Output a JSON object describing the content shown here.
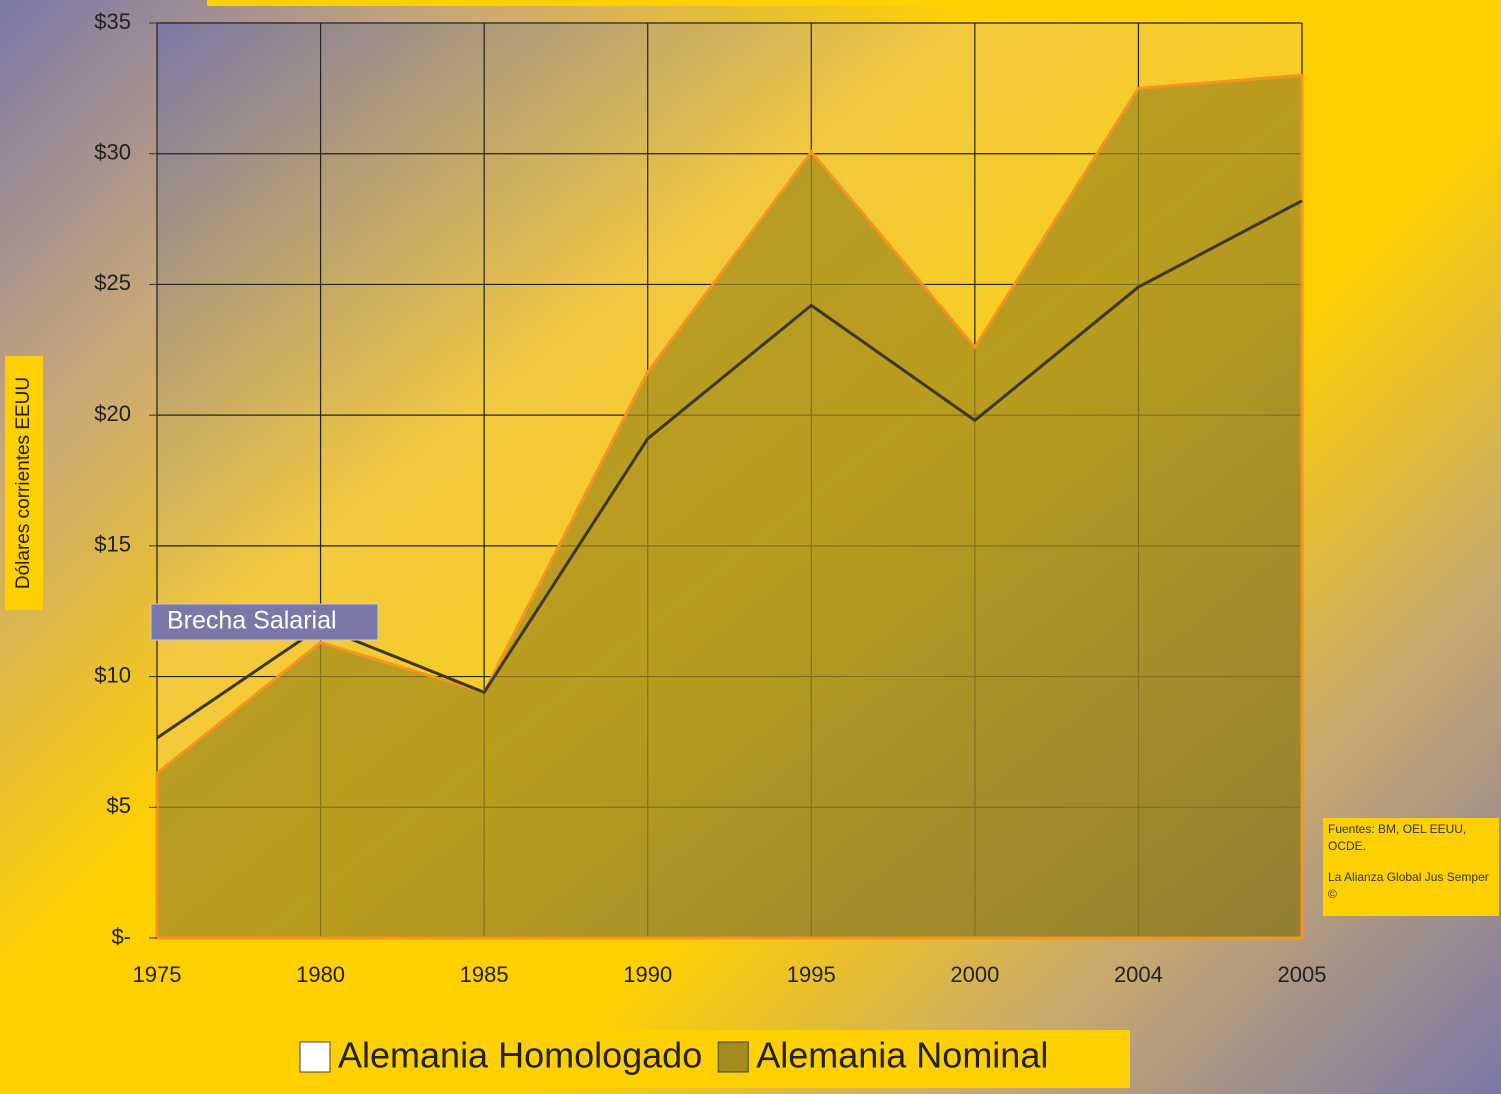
{
  "chart_data": {
    "type": "area",
    "y_label": "Dólares corrientes EEUU",
    "annotation": "Brecha Salarial",
    "source": "Fuentes: BM, OEL EEUU, OCDE.",
    "credit": "La Alianza Global Jus Semper ©",
    "categories": [
      "1975",
      "1980",
      "1985",
      "1990",
      "1995",
      "2000",
      "2004",
      "2005"
    ],
    "series": [
      {
        "name": "Alemania Homologado",
        "style": "line",
        "color": "#3b3826",
        "legend_color": "#ffffff",
        "values": [
          7.65,
          11.9,
          9.4,
          19.1,
          24.2,
          19.8,
          24.9,
          28.2
        ]
      },
      {
        "name": "Alemania Nominal",
        "style": "area",
        "color": "#a48c1e",
        "line_color": "#f7941d",
        "legend_color": "#a48c1e",
        "values": [
          6.3,
          11.3,
          9.4,
          21.65,
          30.07,
          22.6,
          32.5,
          33.0
        ]
      }
    ],
    "ylim": [
      0,
      35
    ],
    "yticks": [
      {
        "value": 0,
        "label": "$-"
      },
      {
        "value": 5,
        "label": "$5"
      },
      {
        "value": 10,
        "label": "$10"
      },
      {
        "value": 15,
        "label": "$15"
      },
      {
        "value": 20,
        "label": "$20"
      },
      {
        "value": 25,
        "label": "$25"
      },
      {
        "value": 30,
        "label": "$30"
      },
      {
        "value": 35,
        "label": "$35"
      }
    ],
    "grid": true
  }
}
